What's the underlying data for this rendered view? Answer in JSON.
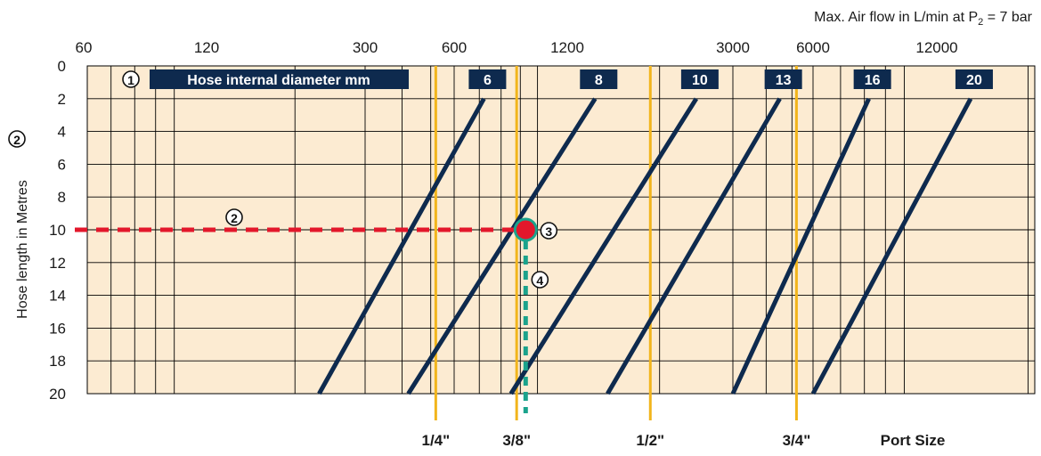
{
  "chart_data": {
    "type": "line",
    "title": {
      "main": "Max. Air flow in L/min at P",
      "sub": "2",
      "tail": " = 7 bar"
    },
    "ylabel": "Hose length in Metres",
    "ylabel_step": "2",
    "ylim": [
      0,
      20
    ],
    "y_ticks": [
      "0",
      "2",
      "4",
      "6",
      "8",
      "10",
      "12",
      "14",
      "16",
      "18",
      "20"
    ],
    "x_scale": "log",
    "x_ticks": [
      "60",
      "120",
      "300",
      "600",
      "1200",
      "3000",
      "6000",
      "12000"
    ],
    "x_tick_values": [
      60,
      120,
      300,
      600,
      1200,
      3000,
      6000,
      12000
    ],
    "legend_label_step": "1",
    "legend_label": "Hose internal diameter mm",
    "series": [
      {
        "name": "6",
        "points": [
          [
            720,
            2
          ],
          [
            230,
            20
          ]
        ]
      },
      {
        "name": "8",
        "points": [
          [
            1400,
            2
          ],
          [
            420,
            20
          ]
        ]
      },
      {
        "name": "10",
        "points": [
          [
            2450,
            2
          ],
          [
            850,
            20
          ]
        ]
      },
      {
        "name": "13",
        "points": [
          [
            4500,
            2
          ],
          [
            1500,
            20
          ]
        ]
      },
      {
        "name": "16",
        "points": [
          [
            8200,
            2
          ],
          [
            3000,
            20
          ]
        ]
      },
      {
        "name": "20",
        "points": [
          [
            14500,
            2
          ],
          [
            6000,
            20
          ]
        ]
      }
    ],
    "port_size_label": "Port Size",
    "port_sizes": [
      {
        "label": "1/4\"",
        "flow": 520
      },
      {
        "label": "3/8\"",
        "flow": 880
      },
      {
        "label": "1/2\"",
        "flow": 1900
      },
      {
        "label": "3/4\"",
        "flow": 5200
      }
    ],
    "example": {
      "hose_length": 10,
      "flow": 930,
      "step_length": "2",
      "step_point": "3",
      "step_port": "4"
    },
    "colors": {
      "plot_bg": "#FCEBD2",
      "grid": "#000000",
      "series": "#0E2A4E",
      "label_bg": "#0E2A4E",
      "port_line": "#F2B51C",
      "red_dash": "#E3172B",
      "teal_dash": "#1BA38C",
      "teal_ring": "#1BA38C",
      "text": "#1a1a1a"
    }
  }
}
